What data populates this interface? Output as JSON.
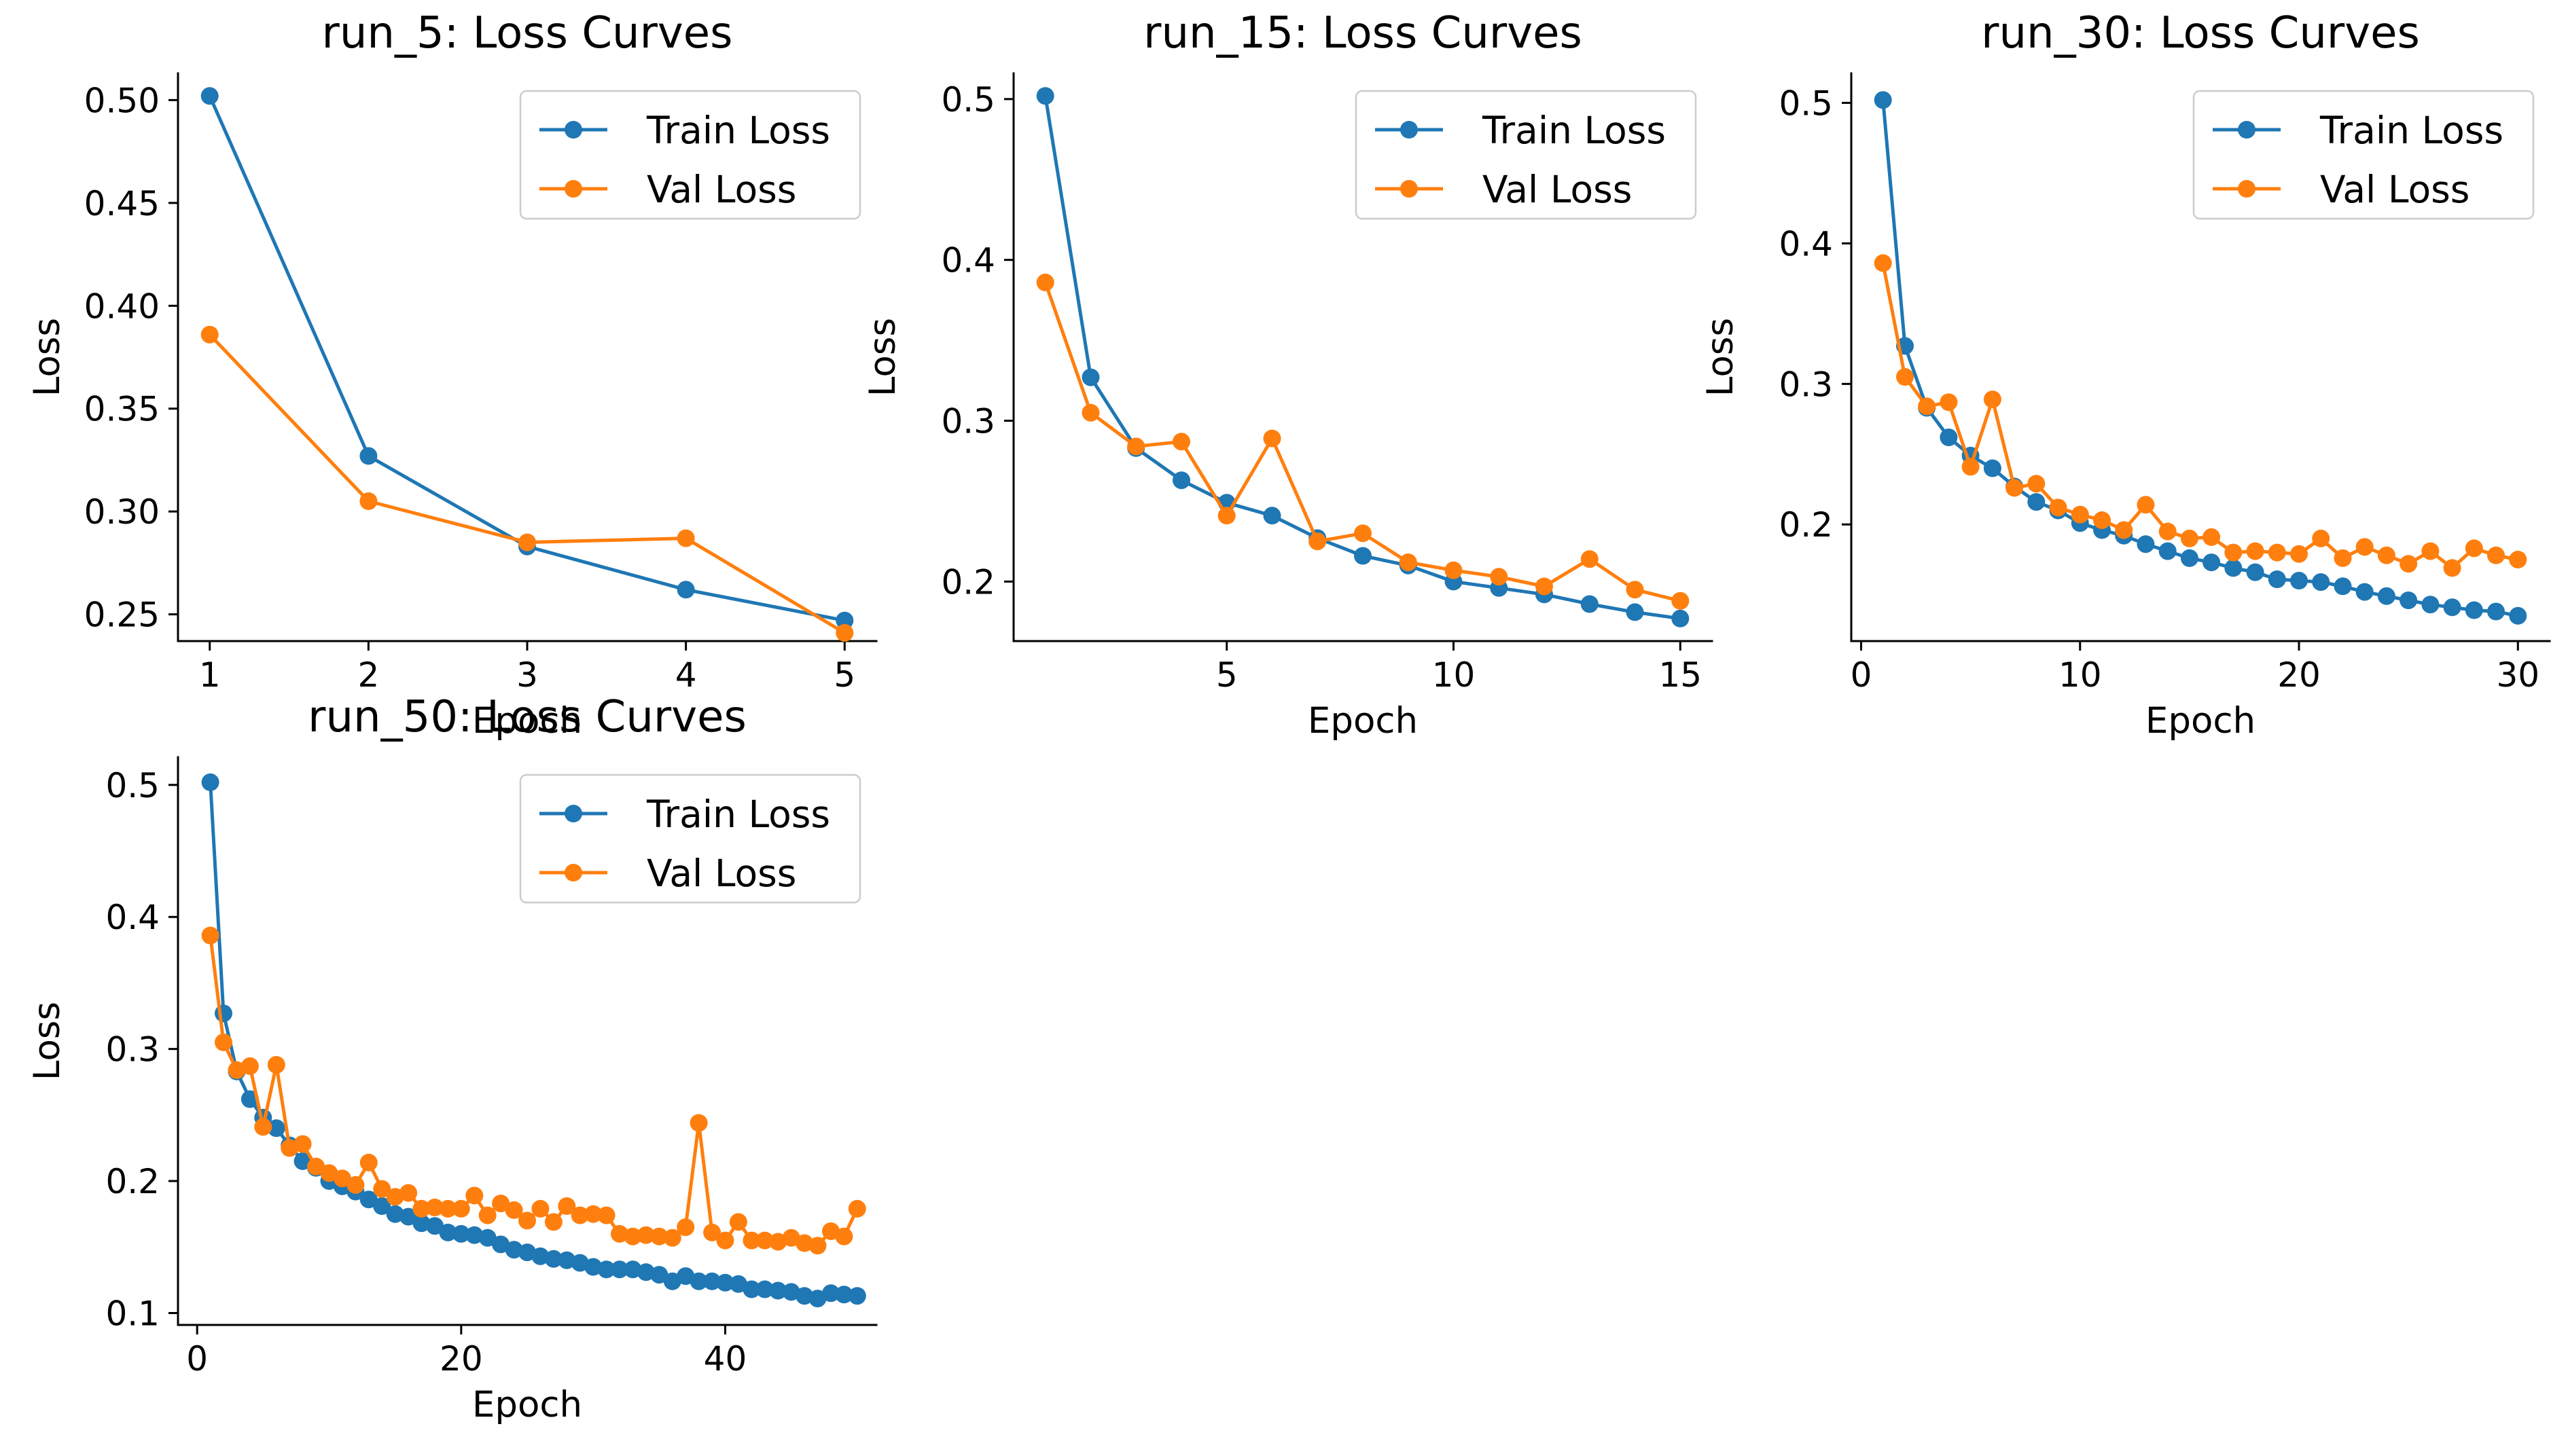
{
  "chart_data": [
    {
      "type": "line",
      "title": "run_5: Loss Curves",
      "xlabel": "Epoch",
      "ylabel": "Loss",
      "xlim": [
        0.8,
        5.2
      ],
      "ylim": [
        0.237,
        0.513
      ],
      "xticks": [
        1,
        2,
        3,
        4,
        5
      ],
      "xtick_labels": [
        "1",
        "2",
        "3",
        "4",
        "5"
      ],
      "yticks": [
        0.25,
        0.3,
        0.35,
        0.4,
        0.45,
        0.5
      ],
      "ytick_labels": [
        "0.25",
        "0.30",
        "0.35",
        "0.40",
        "0.45",
        "0.50"
      ],
      "legend": "top-right",
      "x": [
        1,
        2,
        3,
        4,
        5
      ],
      "series": [
        {
          "name": "Train Loss",
          "color": "#1f77b4",
          "values": [
            0.502,
            0.327,
            0.283,
            0.262,
            0.247
          ]
        },
        {
          "name": "Val Loss",
          "color": "#ff7f0e",
          "values": [
            0.386,
            0.305,
            0.285,
            0.287,
            0.241
          ]
        }
      ]
    },
    {
      "type": "line",
      "title": "run_15: Loss Curves",
      "xlabel": "Epoch",
      "ylabel": "Loss",
      "xlim": [
        0.3,
        15.7
      ],
      "ylim": [
        0.163,
        0.516
      ],
      "xticks": [
        5,
        10,
        15
      ],
      "xtick_labels": [
        "5",
        "10",
        "15"
      ],
      "yticks": [
        0.2,
        0.3,
        0.4,
        0.5
      ],
      "ytick_labels": [
        "0.2",
        "0.3",
        "0.4",
        "0.5"
      ],
      "legend": "top-right",
      "x": [
        1,
        2,
        3,
        4,
        5,
        6,
        7,
        8,
        9,
        10,
        11,
        12,
        13,
        14,
        15
      ],
      "series": [
        {
          "name": "Train Loss",
          "color": "#1f77b4",
          "values": [
            0.502,
            0.327,
            0.283,
            0.263,
            0.249,
            0.241,
            0.227,
            0.216,
            0.21,
            0.2,
            0.196,
            0.192,
            0.186,
            0.181,
            0.177
          ]
        },
        {
          "name": "Val Loss",
          "color": "#ff7f0e",
          "values": [
            0.386,
            0.305,
            0.284,
            0.287,
            0.241,
            0.289,
            0.225,
            0.23,
            0.212,
            0.207,
            0.203,
            0.197,
            0.214,
            0.195,
            0.188
          ]
        }
      ]
    },
    {
      "type": "line",
      "title": "run_30: Loss Curves",
      "xlabel": "Epoch",
      "ylabel": "Loss",
      "xlim": [
        -0.45,
        31.45
      ],
      "ylim": [
        0.117,
        0.521
      ],
      "xticks": [
        0,
        10,
        20,
        30
      ],
      "xtick_labels": [
        "0",
        "10",
        "20",
        "30"
      ],
      "yticks": [
        0.2,
        0.3,
        0.4,
        0.5
      ],
      "ytick_labels": [
        "0.2",
        "0.3",
        "0.4",
        "0.5"
      ],
      "legend": "top-right",
      "x": [
        1,
        2,
        3,
        4,
        5,
        6,
        7,
        8,
        9,
        10,
        11,
        12,
        13,
        14,
        15,
        16,
        17,
        18,
        19,
        20,
        21,
        22,
        23,
        24,
        25,
        26,
        27,
        28,
        29,
        30
      ],
      "series": [
        {
          "name": "Train Loss",
          "color": "#1f77b4",
          "values": [
            0.502,
            0.327,
            0.283,
            0.262,
            0.249,
            0.24,
            0.227,
            0.216,
            0.21,
            0.201,
            0.196,
            0.192,
            0.186,
            0.181,
            0.176,
            0.173,
            0.169,
            0.166,
            0.161,
            0.16,
            0.159,
            0.156,
            0.152,
            0.149,
            0.146,
            0.143,
            0.141,
            0.139,
            0.138,
            0.135
          ]
        },
        {
          "name": "Val Loss",
          "color": "#ff7f0e",
          "values": [
            0.386,
            0.305,
            0.284,
            0.287,
            0.241,
            0.289,
            0.226,
            0.229,
            0.212,
            0.207,
            0.203,
            0.196,
            0.214,
            0.195,
            0.19,
            0.191,
            0.18,
            0.181,
            0.18,
            0.179,
            0.19,
            0.176,
            0.184,
            0.178,
            0.172,
            0.181,
            0.169,
            0.183,
            0.178,
            0.175
          ]
        }
      ]
    },
    {
      "type": "line",
      "title": "run_50: Loss Curves",
      "xlabel": "Epoch",
      "ylabel": "Loss",
      "xlim": [
        -1.45,
        51.45
      ],
      "ylim": [
        0.091,
        0.521
      ],
      "xticks": [
        0,
        20,
        40
      ],
      "xtick_labels": [
        "0",
        "20",
        "40"
      ],
      "yticks": [
        0.1,
        0.2,
        0.3,
        0.4,
        0.5
      ],
      "ytick_labels": [
        "0.1",
        "0.2",
        "0.3",
        "0.4",
        "0.5"
      ],
      "legend": "top-right",
      "x": [
        1,
        2,
        3,
        4,
        5,
        6,
        7,
        8,
        9,
        10,
        11,
        12,
        13,
        14,
        15,
        16,
        17,
        18,
        19,
        20,
        21,
        22,
        23,
        24,
        25,
        26,
        27,
        28,
        29,
        30,
        31,
        32,
        33,
        34,
        35,
        36,
        37,
        38,
        39,
        40,
        41,
        42,
        43,
        44,
        45,
        46,
        47,
        48,
        49,
        50
      ],
      "series": [
        {
          "name": "Train Loss",
          "color": "#1f77b4",
          "values": [
            0.502,
            0.327,
            0.283,
            0.262,
            0.248,
            0.24,
            0.227,
            0.215,
            0.21,
            0.2,
            0.196,
            0.192,
            0.186,
            0.181,
            0.175,
            0.173,
            0.168,
            0.166,
            0.161,
            0.16,
            0.159,
            0.157,
            0.152,
            0.148,
            0.146,
            0.143,
            0.141,
            0.14,
            0.138,
            0.135,
            0.133,
            0.133,
            0.133,
            0.131,
            0.129,
            0.124,
            0.128,
            0.124,
            0.124,
            0.123,
            0.122,
            0.118,
            0.118,
            0.117,
            0.116,
            0.113,
            0.111,
            0.115,
            0.114,
            0.113
          ]
        },
        {
          "name": "Val Loss",
          "color": "#ff7f0e",
          "values": [
            0.386,
            0.305,
            0.284,
            0.287,
            0.241,
            0.288,
            0.225,
            0.228,
            0.211,
            0.206,
            0.202,
            0.197,
            0.214,
            0.194,
            0.188,
            0.191,
            0.179,
            0.18,
            0.179,
            0.179,
            0.189,
            0.174,
            0.183,
            0.178,
            0.17,
            0.179,
            0.169,
            0.181,
            0.174,
            0.175,
            0.174,
            0.16,
            0.158,
            0.159,
            0.158,
            0.157,
            0.165,
            0.244,
            0.161,
            0.155,
            0.169,
            0.155,
            0.155,
            0.154,
            0.157,
            0.153,
            0.151,
            0.162,
            0.158,
            0.179
          ]
        }
      ]
    }
  ]
}
